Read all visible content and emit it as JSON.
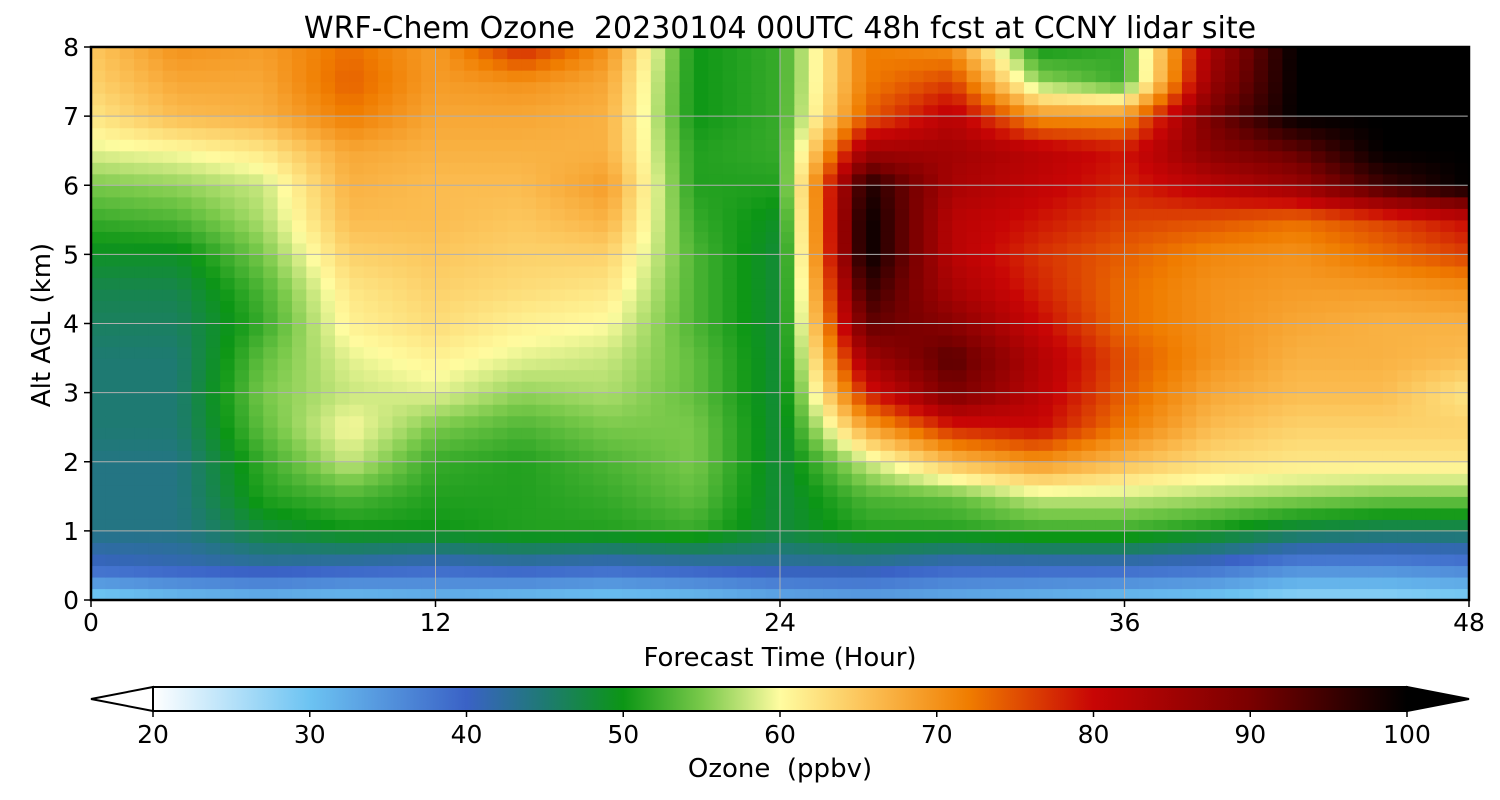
{
  "chart_data": {
    "type": "heatmap",
    "title": "WRF-Chem Ozone  20230104 00UTC 48h fcst at CCNY lidar site",
    "xlabel": "Forecast Time (Hour)",
    "ylabel": "Alt AGL (km)",
    "xlim": [
      0,
      48
    ],
    "ylim": [
      0,
      8
    ],
    "x_ticks": [
      0,
      12,
      24,
      36,
      48
    ],
    "y_ticks": [
      0,
      1,
      2,
      3,
      4,
      5,
      6,
      7,
      8
    ],
    "grid": true,
    "x": [
      0,
      3,
      6,
      9,
      12,
      15,
      18,
      21,
      24,
      27,
      30,
      33,
      36,
      39,
      42,
      45,
      48
    ],
    "y": [
      0,
      0.5,
      1,
      1.5,
      2,
      2.5,
      3,
      3.5,
      4,
      4.5,
      5,
      5.5,
      6,
      6.5,
      7,
      7.5,
      8
    ],
    "z_ppbv": [
      [
        28,
        30,
        31,
        30,
        31,
        30,
        29,
        30,
        32,
        33,
        32,
        31,
        30,
        29,
        27,
        27,
        28
      ],
      [
        40,
        41,
        42,
        41,
        40,
        41,
        40,
        41,
        42,
        42,
        40,
        40,
        40,
        39,
        36,
        36,
        37
      ],
      [
        44,
        44,
        48,
        50,
        50,
        51,
        51,
        52,
        48,
        51,
        51,
        52,
        52,
        50,
        47,
        46,
        46
      ],
      [
        44,
        44,
        51,
        53,
        51,
        51,
        52,
        54,
        48,
        53,
        54,
        58,
        58,
        57,
        56,
        55,
        55
      ],
      [
        44,
        44,
        52,
        58,
        52,
        51,
        53,
        55,
        48,
        58,
        66,
        70,
        66,
        63,
        62,
        62,
        62
      ],
      [
        45,
        45,
        54,
        60,
        55,
        53,
        55,
        55,
        48,
        68,
        78,
        80,
        72,
        66,
        64,
        64,
        64
      ],
      [
        45,
        45,
        55,
        58,
        59,
        56,
        57,
        54,
        48,
        78,
        90,
        82,
        74,
        68,
        66,
        66,
        62
      ],
      [
        45,
        45,
        54,
        59,
        61,
        59,
        58,
        54,
        48,
        85,
        93,
        83,
        75,
        70,
        67,
        67,
        66
      ],
      [
        46,
        46,
        52,
        61,
        63,
        61,
        60,
        53,
        48,
        92,
        88,
        80,
        73,
        70,
        68,
        67,
        67
      ],
      [
        47,
        47,
        53,
        62,
        64,
        63,
        62,
        53,
        48,
        96,
        84,
        78,
        73,
        70,
        69,
        69,
        70
      ],
      [
        49,
        49,
        55,
        64,
        65,
        64,
        64,
        53,
        48,
        100,
        82,
        77,
        74,
        71,
        70,
        73,
        76
      ],
      [
        52,
        53,
        57,
        66,
        66,
        65,
        67,
        52,
        49,
        100,
        82,
        79,
        76,
        75,
        73,
        76,
        80
      ],
      [
        55,
        56,
        58,
        67,
        66,
        66,
        69,
        51,
        51,
        98,
        84,
        81,
        78,
        82,
        86,
        95,
        100
      ],
      [
        59,
        60,
        62,
        68,
        67,
        67,
        67,
        51,
        52,
        85,
        85,
        82,
        79,
        88,
        92,
        100,
        100
      ],
      [
        62,
        66,
        67,
        72,
        68,
        68,
        67,
        50,
        52,
        74,
        82,
        70,
        70,
        90,
        100,
        100,
        100
      ],
      [
        64,
        68,
        68,
        74,
        69,
        70,
        68,
        50,
        52,
        72,
        76,
        56,
        52,
        86,
        100,
        100,
        100
      ],
      [
        65,
        70,
        69,
        73,
        69,
        78,
        70,
        50,
        52,
        72,
        70,
        50,
        52,
        84,
        100,
        100,
        100
      ]
    ],
    "colorbar": {
      "label": "Ozone  (ppbv)",
      "min": 20,
      "max": 100,
      "ticks": [
        20,
        30,
        40,
        50,
        60,
        70,
        80,
        90,
        100
      ],
      "extend": "both",
      "stops": [
        {
          "v": 20,
          "color": "#ffffff"
        },
        {
          "v": 30,
          "color": "#6cc3f2"
        },
        {
          "v": 40,
          "color": "#3a62c6"
        },
        {
          "v": 45,
          "color": "#1e7a72"
        },
        {
          "v": 50,
          "color": "#0c9615"
        },
        {
          "v": 55,
          "color": "#79c94a"
        },
        {
          "v": 58,
          "color": "#c8e77e"
        },
        {
          "v": 60,
          "color": "#fffca0"
        },
        {
          "v": 66,
          "color": "#fbbc50"
        },
        {
          "v": 72,
          "color": "#f07d00"
        },
        {
          "v": 80,
          "color": "#c80505"
        },
        {
          "v": 90,
          "color": "#7a0000"
        },
        {
          "v": 100,
          "color": "#000000"
        }
      ]
    }
  }
}
